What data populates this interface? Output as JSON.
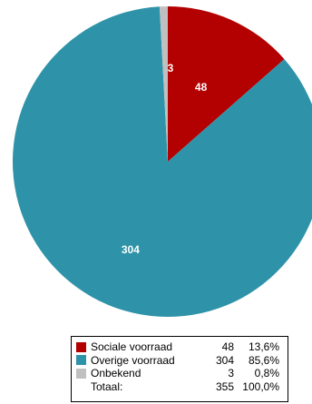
{
  "chart_data": {
    "type": "pie",
    "categories": [
      "Sociale voorraad",
      "Overige voorraad",
      "Onbekend"
    ],
    "values": [
      48,
      304,
      3
    ],
    "percentages": [
      "13,6%",
      "85,6%",
      "0,8%"
    ],
    "slice_labels": [
      "48",
      "304",
      "3"
    ],
    "colors": [
      "#b30000",
      "#2e93a8",
      "#c0c0c0"
    ],
    "start_angle_deg": 0,
    "direction": "clockwise",
    "legend_placement": "bottom-center",
    "total": {
      "label": "Totaal:",
      "count": "355",
      "percentage": "100,0%"
    }
  },
  "legend": {
    "rows": [
      {
        "label": "Sociale voorraad",
        "count": "48",
        "pct": "13,6%",
        "color": "#b30000"
      },
      {
        "label": "Overige voorraad",
        "count": "304",
        "pct": "85,6%",
        "color": "#2e93a8"
      },
      {
        "label": "Onbekend",
        "count": "3",
        "pct": "0,8%",
        "color": "#c0c0c0"
      }
    ],
    "total": {
      "label": "Totaal:",
      "count": "355",
      "pct": "100,0%"
    }
  }
}
